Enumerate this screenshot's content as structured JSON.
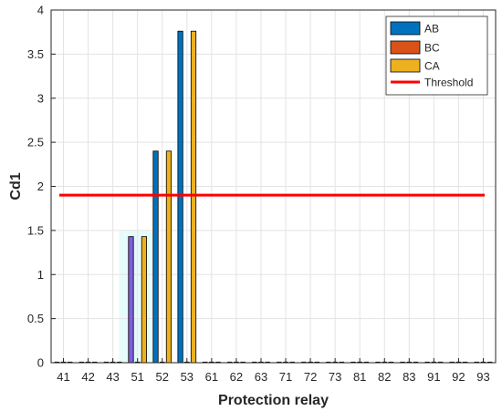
{
  "chart_data": {
    "type": "bar",
    "title": "",
    "xlabel": "Protection relay",
    "ylabel": "Cd1",
    "ylim": [
      0,
      4
    ],
    "yticks": [
      "0",
      "0.5",
      "1",
      "1.5",
      "2",
      "2.5",
      "3",
      "3.5",
      "4"
    ],
    "grid": true,
    "legend_position": "top-right",
    "categories": [
      "41",
      "42",
      "43",
      "51",
      "52",
      "53",
      "61",
      "62",
      "63",
      "71",
      "72",
      "73",
      "81",
      "82",
      "83",
      "91",
      "92",
      "93"
    ],
    "series": [
      {
        "name": "AB",
        "color": "#0072BD",
        "values": [
          0,
          0,
          0,
          1.43,
          2.4,
          3.76,
          0,
          0,
          0,
          0,
          0,
          0,
          0,
          0,
          0,
          0,
          0,
          0
        ]
      },
      {
        "name": "BC",
        "color": "#D95319",
        "values": [
          0,
          0,
          0,
          0,
          0,
          0,
          0,
          0,
          0,
          0,
          0,
          0,
          0,
          0,
          0,
          0,
          0,
          0
        ]
      },
      {
        "name": "CA",
        "color": "#EDB120",
        "values": [
          0,
          0,
          0,
          1.43,
          2.4,
          3.76,
          0,
          0,
          0,
          0,
          0,
          0,
          0,
          0,
          0,
          0,
          0,
          0
        ]
      }
    ],
    "threshold": {
      "name": "Threshold",
      "value": 1.9,
      "color": "#FF0000"
    },
    "highlight_colors": {
      "AB_at_51": "#7E5FD8",
      "glow": "#E6FBFB"
    }
  }
}
